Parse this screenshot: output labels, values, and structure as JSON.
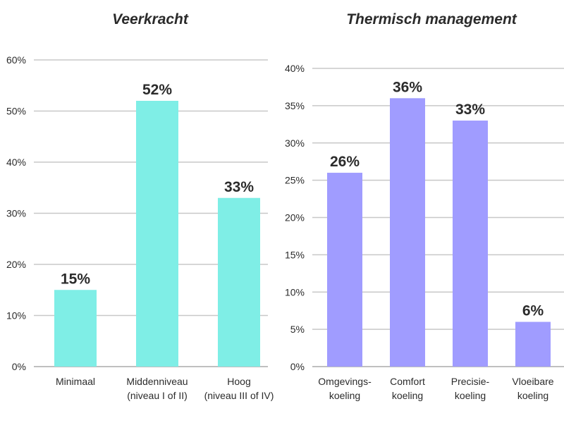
{
  "chart_data": [
    {
      "type": "bar",
      "title": "Veerkracht",
      "categories": [
        [
          "Minimaal"
        ],
        [
          "Middenniveau",
          "(niveau I of II)"
        ],
        [
          "Hoog",
          "(niveau III of IV)"
        ]
      ],
      "values": [
        15,
        52,
        33
      ],
      "data_labels": [
        "15%",
        "52%",
        "33%"
      ],
      "ylim": [
        0,
        60
      ],
      "yticks": [
        0,
        10,
        20,
        30,
        40,
        50,
        60
      ],
      "ytick_labels": [
        "0%",
        "10%",
        "20%",
        "30%",
        "40%",
        "50%",
        "60%"
      ],
      "xlabel": "",
      "ylabel": "",
      "grid": true,
      "color": "#7feee6"
    },
    {
      "type": "bar",
      "title": "Thermisch management",
      "categories": [
        [
          "Omgevings-",
          "koeling"
        ],
        [
          "Comfort",
          "koeling"
        ],
        [
          "Precisie-",
          "koeling"
        ],
        [
          "Vloeibare",
          "koeling"
        ]
      ],
      "values": [
        26,
        36,
        33,
        6
      ],
      "data_labels": [
        "26%",
        "36%",
        "33%",
        "6%"
      ],
      "ylim": [
        0,
        40
      ],
      "yticks": [
        0,
        5,
        10,
        15,
        20,
        25,
        30,
        35,
        40
      ],
      "ytick_labels": [
        "0%",
        "5%",
        "10%",
        "15%",
        "20%",
        "25%",
        "30%",
        "35%",
        "40%"
      ],
      "xlabel": "",
      "ylabel": "",
      "grid": true,
      "color": "#a09cff"
    }
  ]
}
